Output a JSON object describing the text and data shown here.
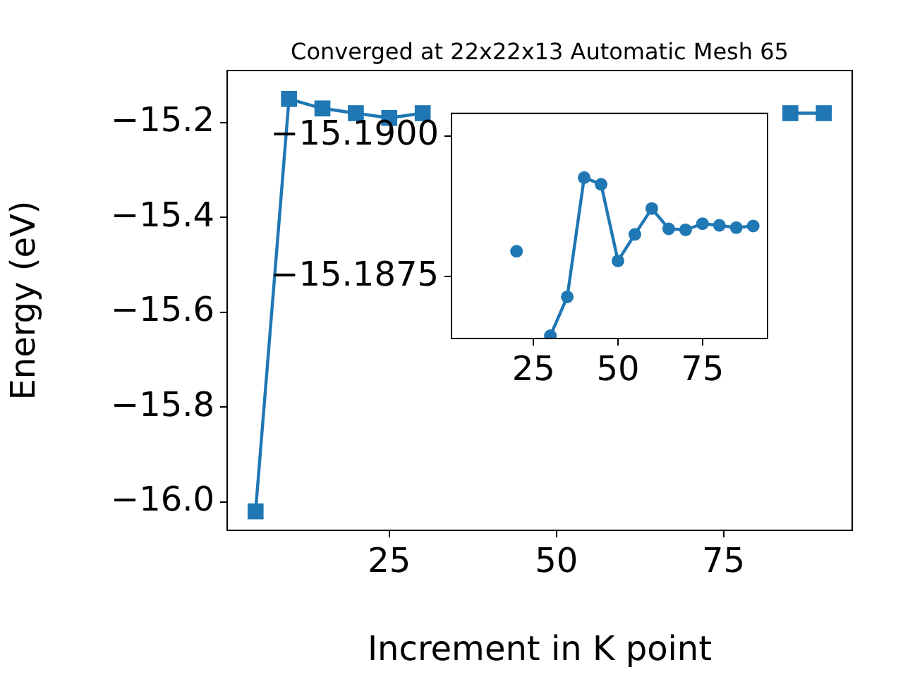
{
  "chart_data": [
    {
      "type": "line",
      "title": "Converged at 22x22x13 Automatic Mesh 65",
      "xlabel": "Increment in K point",
      "ylabel": "Energy (eV)",
      "x": [
        5,
        10,
        15,
        20,
        25,
        30,
        35,
        40,
        45,
        50,
        55,
        60,
        65,
        70,
        75,
        80,
        85,
        90
      ],
      "series": [
        {
          "color": "#1f77b4",
          "values": [
            -16.02,
            -15.15,
            -15.17,
            -15.18,
            -15.19,
            -15.18,
            null,
            null,
            null,
            null,
            null,
            null,
            null,
            null,
            null,
            null,
            -15.18,
            -15.18
          ]
        }
      ],
      "xlim": [
        0.75,
        94.25
      ],
      "xticks": [
        25,
        50,
        75
      ],
      "ylim": [
        -16.06,
        -15.09
      ],
      "yticks": [
        {
          "value": -16.0,
          "label": "−16.0"
        },
        {
          "value": -15.8,
          "label": "−15.8"
        },
        {
          "value": -15.6,
          "label": "−15.6"
        },
        {
          "value": -15.4,
          "label": "−15.4"
        },
        {
          "value": -15.2,
          "label": "−15.2"
        }
      ],
      "marker": "square",
      "grid": false
    },
    {
      "type": "line",
      "x": [
        20,
        25,
        30,
        35,
        40,
        45,
        50,
        55,
        60,
        65,
        70,
        75,
        80,
        85,
        90
      ],
      "series": [
        {
          "color": "#1f77b4",
          "values": [
            -15.18795,
            null,
            -15.18645,
            -15.18714,
            -15.18926,
            -15.18914,
            -15.18778,
            -15.18825,
            -15.18871,
            -15.18835,
            -15.18833,
            -15.18844,
            -15.18841,
            -15.18837,
            -15.1884
          ]
        }
      ],
      "xlim": [
        0.75,
        94.25
      ],
      "xticks": [
        25,
        50,
        75
      ],
      "ylim": [
        -15.1864,
        -15.1904
      ],
      "yticks": [
        {
          "value": -15.19,
          "label": "−15.1900"
        },
        {
          "value": -15.1875,
          "label": "−15.1875"
        }
      ],
      "marker": "circle",
      "grid": false
    }
  ]
}
